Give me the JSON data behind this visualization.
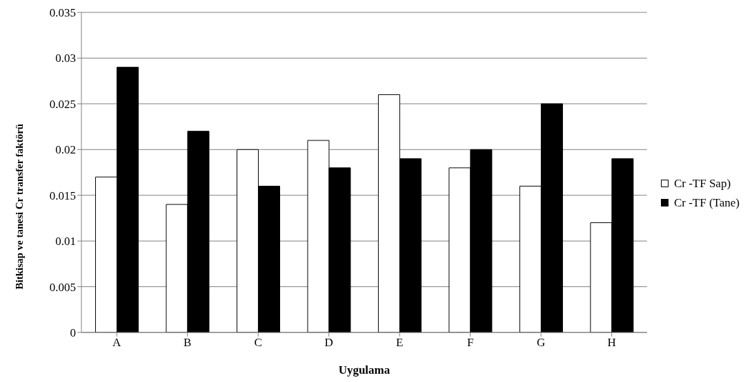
{
  "chart_data": {
    "type": "bar",
    "xlabel": "Uygulama",
    "ylabel": "Bitkisap ve tanesi Cr transfer faktörü",
    "categories": [
      "A",
      "B",
      "C",
      "D",
      "E",
      "F",
      "G",
      "H"
    ],
    "series": [
      {
        "name": "Cr -TF Sap)",
        "color": "#ffffff",
        "values": [
          0.017,
          0.014,
          0.02,
          0.021,
          0.026,
          0.018,
          0.016,
          0.012
        ]
      },
      {
        "name": "Cr -TF (Tane)",
        "color": "#000000",
        "values": [
          0.029,
          0.022,
          0.016,
          0.018,
          0.019,
          0.02,
          0.025,
          0.019
        ]
      }
    ],
    "ylim": [
      0,
      0.035
    ],
    "yticks": [
      0,
      0.005,
      0.01,
      0.015,
      0.02,
      0.025,
      0.03,
      0.035
    ],
    "grid": "y",
    "legend": "right"
  }
}
